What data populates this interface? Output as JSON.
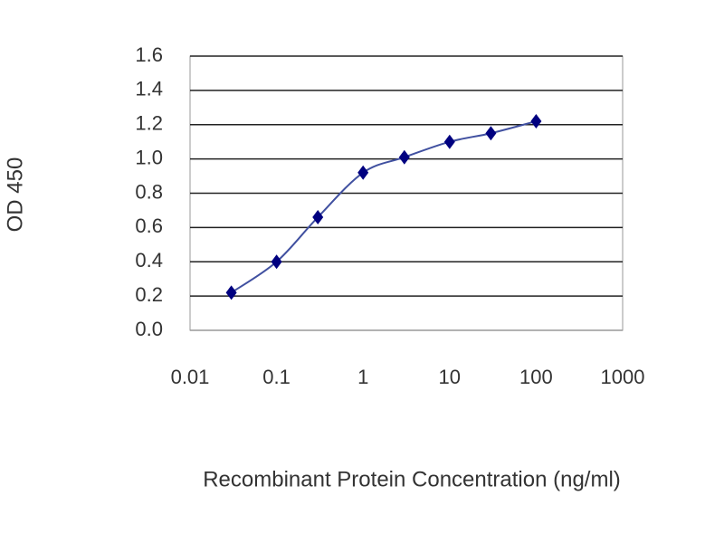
{
  "chart_data": {
    "type": "line",
    "xlabel": "Recombinant Protein Concentration (ng/ml)",
    "ylabel": "OD 450",
    "x": [
      0.03,
      0.1,
      0.3,
      1,
      3,
      10,
      30,
      100
    ],
    "values": [
      0.22,
      0.4,
      0.66,
      0.92,
      1.01,
      1.1,
      1.15,
      1.22
    ],
    "color": "#000080",
    "line_color": "#4050a0",
    "xscale": "log",
    "xlim": [
      0.01,
      1000
    ],
    "xticks": [
      0.01,
      0.1,
      1,
      10,
      100,
      1000
    ],
    "ylim": [
      0,
      1.6
    ],
    "yticks": [
      {
        "value": 0,
        "label": "0.0"
      },
      0.2,
      0.4,
      0.6,
      0.8,
      {
        "value": 1,
        "label": "1.0"
      },
      1.2,
      1.4,
      1.6
    ],
    "grid": true
  }
}
